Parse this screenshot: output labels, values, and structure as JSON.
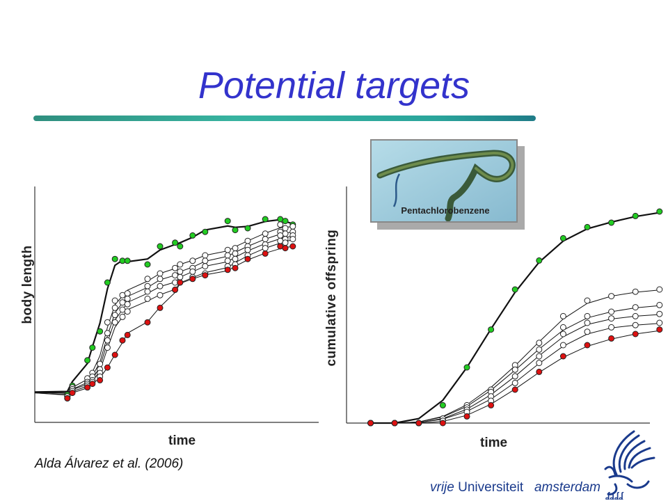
{
  "slide": {
    "title": "Potential targets",
    "citation": "Alda Álvarez et al. (2006)",
    "inset_caption": "Pentachlorobenzene",
    "footer": {
      "part1": "vrije",
      "part2": "Universiteit",
      "part3": "amsterdam"
    }
  },
  "colors": {
    "title": "#3333cc",
    "control": "#22cc22",
    "highest_dose": "#dd1111",
    "intermediate": "#ffffff"
  },
  "chart_data": [
    {
      "type": "scatter",
      "title": "",
      "xlabel": "time",
      "ylabel": "body length",
      "xlim": [
        0,
        10
      ],
      "ylim": [
        0,
        10
      ],
      "x": [
        1.3,
        1.5,
        2.1,
        2.3,
        2.6,
        2.9,
        3.2,
        3.5,
        3.7,
        4.5,
        5.0,
        5.6,
        5.8,
        6.3,
        6.8,
        7.7,
        8.0,
        8.5,
        9.2,
        9.8,
        10.0,
        10.3
      ],
      "series": [
        {
          "values": [
            -0.2,
            0.3,
            1.7,
            2.4,
            3.3,
            6.0,
            7.3,
            7.2,
            7.2,
            7.0,
            8.0,
            8.2,
            8.0,
            8.6,
            8.8,
            9.4,
            8.9,
            9.0,
            9.5,
            9.5,
            9.4,
            9.2
          ]
        },
        {
          "values": [
            -0.3,
            0.2,
            0.7,
            1.0,
            1.5,
            3.8,
            5.0,
            5.3,
            5.4,
            6.2,
            6.5,
            6.8,
            7.0,
            7.2,
            7.5,
            7.8,
            7.9,
            8.3,
            8.7,
            9.2,
            9.0,
            9.1
          ]
        },
        {
          "values": [
            -0.3,
            0.1,
            0.5,
            0.8,
            1.2,
            3.2,
            4.6,
            4.9,
            5.1,
            5.8,
            6.2,
            6.4,
            6.6,
            6.8,
            7.2,
            7.5,
            7.6,
            8.0,
            8.4,
            8.8,
            8.7,
            8.8
          ]
        },
        {
          "values": [
            -0.3,
            0.1,
            0.4,
            0.6,
            1.0,
            2.8,
            4.2,
            4.5,
            4.8,
            5.5,
            5.8,
            6.0,
            6.3,
            6.6,
            6.9,
            7.2,
            7.3,
            7.8,
            8.1,
            8.6,
            8.4,
            8.6
          ]
        },
        {
          "values": [
            -0.4,
            0.0,
            0.3,
            0.5,
            0.8,
            2.4,
            3.8,
            4.1,
            4.4,
            5.1,
            5.3,
            5.6,
            6.0,
            6.3,
            6.5,
            6.9,
            7.0,
            7.5,
            7.9,
            8.3,
            8.2,
            8.4
          ]
        },
        {
          "values": [
            -0.4,
            -0.1,
            0.2,
            0.4,
            0.6,
            1.3,
            2.0,
            2.8,
            3.1,
            3.8,
            4.6,
            5.6,
            6.0,
            6.2,
            6.4,
            6.7,
            6.8,
            7.3,
            7.6,
            8.0,
            7.9,
            8.0
          ]
        }
      ]
    },
    {
      "type": "scatter",
      "title": "",
      "xlabel": "time",
      "ylabel": "cumulative offspring",
      "xlim": [
        0,
        14
      ],
      "ylim": [
        0,
        100
      ],
      "x": [
        1,
        2,
        3,
        4,
        5,
        6,
        7,
        8,
        9,
        10,
        11,
        12,
        13
      ],
      "series": [
        {
          "values": [
            0,
            0,
            0,
            8,
            25,
            42,
            60,
            73,
            83,
            88,
            90,
            93,
            95
          ]
        },
        {
          "values": [
            0,
            0,
            0,
            2,
            8,
            15,
            26,
            36,
            48,
            55,
            57,
            59,
            60
          ]
        },
        {
          "values": [
            0,
            0,
            0,
            2,
            7,
            14,
            24,
            33,
            43,
            48,
            50,
            52,
            53
          ]
        },
        {
          "values": [
            0,
            0,
            0,
            1,
            6,
            12,
            21,
            30,
            40,
            45,
            47,
            48,
            49
          ]
        },
        {
          "values": [
            0,
            0,
            0,
            1,
            5,
            10,
            18,
            27,
            35,
            41,
            43,
            44,
            45
          ]
        },
        {
          "values": [
            0,
            0,
            0,
            0,
            3,
            8,
            15,
            23,
            30,
            35,
            38,
            40,
            42
          ]
        }
      ]
    }
  ]
}
